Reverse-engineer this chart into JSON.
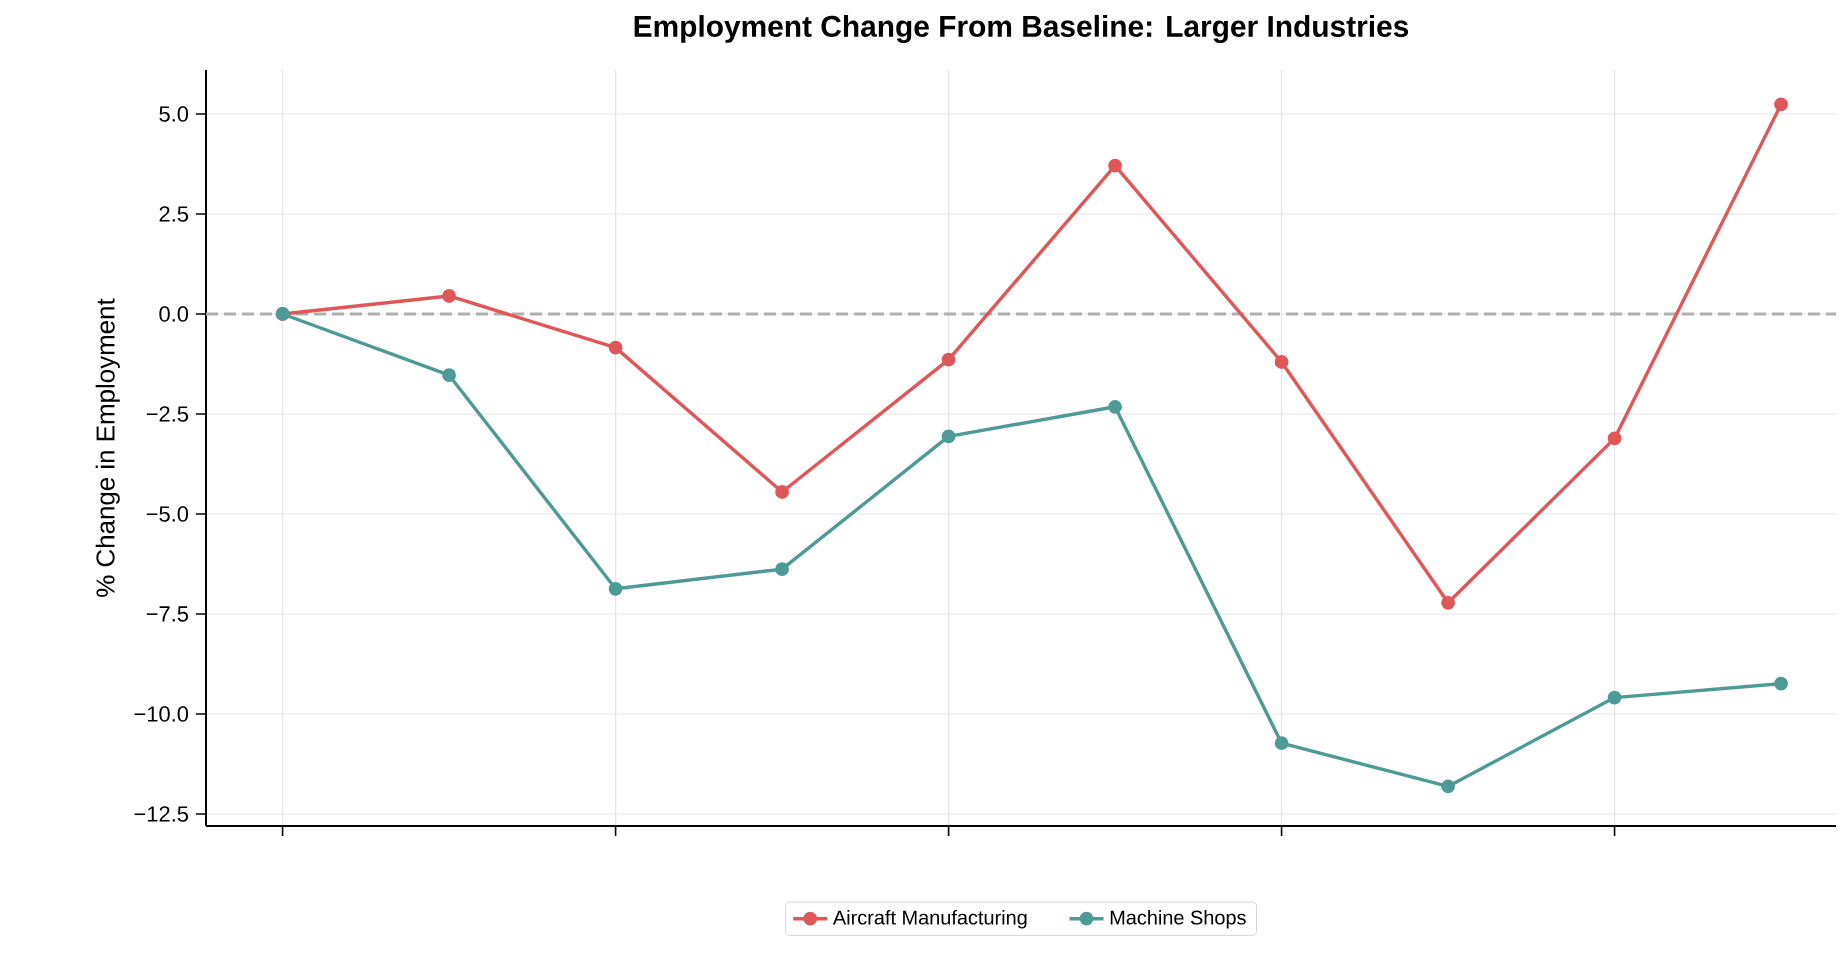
{
  "chart_data": {
    "type": "line",
    "title": "Employment Change From Baseline: Larger Industries",
    "ylabel": "% Change in Employment",
    "categories": [
      null,
      null,
      null,
      null,
      null,
      null,
      null,
      null,
      null,
      null
    ],
    "ylim": [
      -12.8,
      6.1
    ],
    "yticks": [
      {
        "value": -12.5,
        "label": "−12.5"
      },
      {
        "value": -10,
        "label": "−10.0"
      },
      {
        "value": -7.5,
        "label": "−7.5"
      },
      {
        "value": -5,
        "label": "−5.0"
      },
      {
        "value": -2.5,
        "label": "−2.5"
      },
      {
        "value": 0,
        "label": "0.0"
      },
      {
        "value": 2.5,
        "label": "2.5"
      },
      {
        "value": 5,
        "label": "5.0"
      }
    ],
    "series": [
      {
        "name": "Aircraft Manufacturing",
        "color": "#e05759",
        "values": [
          0,
          0.45,
          -0.84,
          -4.45,
          -1.14,
          3.71,
          -1.2,
          -7.22,
          -3.11,
          5.24
        ]
      },
      {
        "name": "Machine Shops",
        "color": "#4e9a96",
        "values": [
          0,
          -1.53,
          -6.87,
          -6.38,
          -3.06,
          -2.32,
          -10.73,
          -11.81,
          -9.59,
          -9.24
        ]
      }
    ],
    "ref_lines": [
      {
        "axis": "y",
        "value": 0,
        "color": "#b0b0b0",
        "line_style": "dashed"
      }
    ],
    "grid": true,
    "legend": "bottom",
    "marker": "circle",
    "line_style": "solid"
  }
}
